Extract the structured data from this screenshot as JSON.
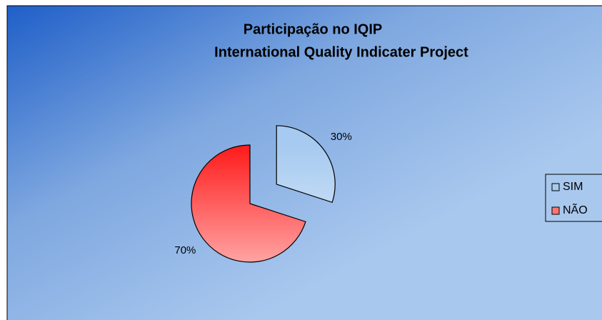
{
  "chart_data": {
    "type": "pie",
    "title": "Participação no IQIP",
    "subtitle": "International Quality Indicater Project",
    "categories": [
      "SIM",
      "NÃO"
    ],
    "values": [
      30,
      70
    ],
    "value_labels": [
      "30%",
      "70%"
    ],
    "colors": [
      "#a6caf0",
      "#ff1a1a"
    ],
    "legend": "right"
  }
}
